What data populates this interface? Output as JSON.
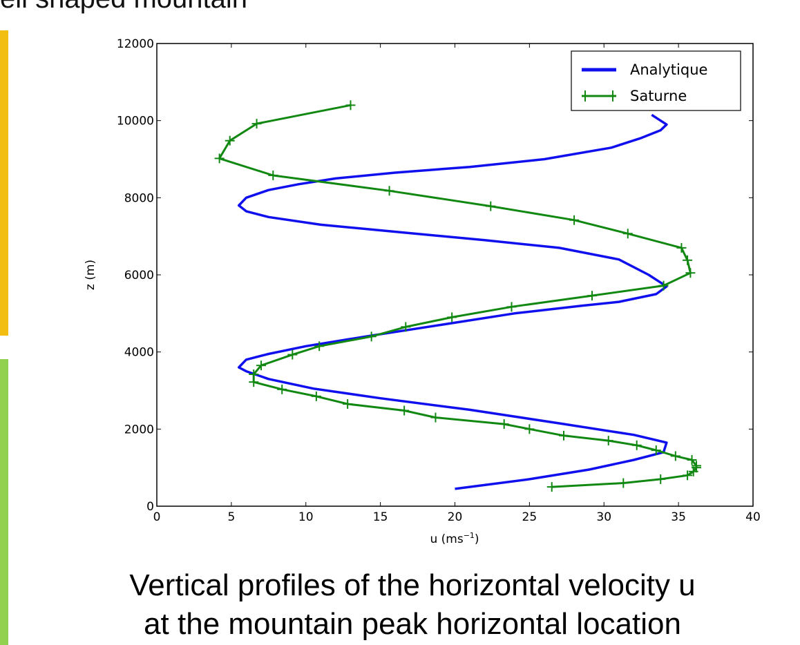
{
  "slide": {
    "title": "ell shaped mountain",
    "caption_line1": "Vertical profiles of the horizontal velocity u",
    "caption_line2": "at the mountain peak horizontal location",
    "accent_colors": {
      "yellow_bar": "#f2be12",
      "green_bar": "#92d050"
    }
  },
  "chart_data": {
    "type": "line",
    "xlabel": "u (ms",
    "xlabel_sup": "−1",
    "xlabel_close": ")",
    "ylabel": "z (m)",
    "xlim": [
      0,
      40
    ],
    "ylim": [
      0,
      12000
    ],
    "x_ticks": [
      "0",
      "5",
      "10",
      "15",
      "20",
      "25",
      "30",
      "35",
      "40"
    ],
    "y_ticks": [
      "0",
      "2000",
      "4000",
      "6000",
      "8000",
      "10000",
      "12000"
    ],
    "grid": false,
    "legend_position": "top-right",
    "series": [
      {
        "name": "Analytique",
        "color": "#1010ee",
        "markers": false,
        "points": [
          [
            20.0,
            450
          ],
          [
            25.0,
            700
          ],
          [
            29.0,
            950
          ],
          [
            32.0,
            1200
          ],
          [
            34.0,
            1400
          ],
          [
            34.2,
            1650
          ],
          [
            32.0,
            1850
          ],
          [
            27.0,
            2150
          ],
          [
            21.0,
            2500
          ],
          [
            15.0,
            2800
          ],
          [
            10.5,
            3050
          ],
          [
            7.5,
            3300
          ],
          [
            6.0,
            3500
          ],
          [
            5.5,
            3600
          ],
          [
            6.0,
            3800
          ],
          [
            7.5,
            3950
          ],
          [
            10.0,
            4150
          ],
          [
            14.0,
            4400
          ],
          [
            19.0,
            4700
          ],
          [
            24.0,
            5000
          ],
          [
            28.5,
            5200
          ],
          [
            31.0,
            5300
          ],
          [
            33.5,
            5500
          ],
          [
            34.2,
            5700
          ],
          [
            33.0,
            6000
          ],
          [
            31.0,
            6400
          ],
          [
            27.0,
            6700
          ],
          [
            22.0,
            6900
          ],
          [
            16.5,
            7100
          ],
          [
            11.0,
            7300
          ],
          [
            7.5,
            7500
          ],
          [
            6.0,
            7650
          ],
          [
            5.5,
            7800
          ],
          [
            6.0,
            8000
          ],
          [
            7.5,
            8200
          ],
          [
            9.5,
            8350
          ],
          [
            12.0,
            8500
          ],
          [
            16.0,
            8650
          ],
          [
            21.0,
            8800
          ],
          [
            26.0,
            9000
          ],
          [
            30.5,
            9300
          ],
          [
            32.5,
            9550
          ],
          [
            33.8,
            9750
          ],
          [
            34.2,
            9900
          ],
          [
            33.2,
            10150
          ]
        ]
      },
      {
        "name": "Saturne",
        "color": "#118811",
        "markers": true,
        "points": [
          [
            26.5,
            500
          ],
          [
            31.3,
            600
          ],
          [
            33.8,
            700
          ],
          [
            35.6,
            800
          ],
          [
            36.0,
            900
          ],
          [
            36.2,
            1000
          ],
          [
            36.2,
            1050
          ],
          [
            35.9,
            1200
          ],
          [
            34.8,
            1300
          ],
          [
            33.5,
            1450
          ],
          [
            32.2,
            1580
          ],
          [
            30.3,
            1700
          ],
          [
            27.3,
            1830
          ],
          [
            25.0,
            2000
          ],
          [
            23.3,
            2130
          ],
          [
            18.7,
            2300
          ],
          [
            16.6,
            2480
          ],
          [
            12.8,
            2650
          ],
          [
            10.7,
            2850
          ],
          [
            8.4,
            3030
          ],
          [
            6.5,
            3220
          ],
          [
            6.5,
            3420
          ],
          [
            7.0,
            3650
          ],
          [
            9.1,
            3930
          ],
          [
            10.9,
            4150
          ],
          [
            14.4,
            4400
          ],
          [
            16.7,
            4650
          ],
          [
            19.8,
            4900
          ],
          [
            23.8,
            5170
          ],
          [
            29.2,
            5460
          ],
          [
            34.0,
            5720
          ],
          [
            35.8,
            6050
          ],
          [
            35.6,
            6380
          ],
          [
            35.2,
            6700
          ],
          [
            31.6,
            7070
          ],
          [
            28.0,
            7420
          ],
          [
            22.4,
            7780
          ],
          [
            15.6,
            8180
          ],
          [
            7.8,
            8580
          ],
          [
            4.2,
            9020
          ],
          [
            4.9,
            9480
          ],
          [
            6.7,
            9920
          ],
          [
            13.0,
            10400
          ]
        ]
      }
    ]
  }
}
